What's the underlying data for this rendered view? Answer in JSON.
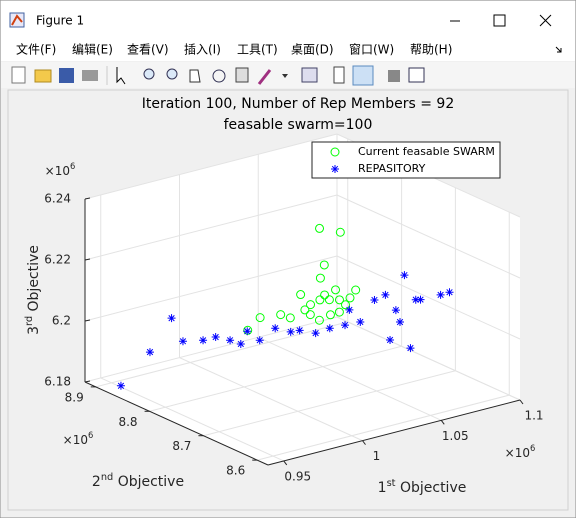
{
  "window": {
    "title": "Figure 1",
    "menu": [
      "文件(F)",
      "编辑(E)",
      "查看(V)",
      "插入(I)",
      "工具(T)",
      "桌面(D)",
      "窗口(W)",
      "帮助(H)"
    ]
  },
  "chart_data": {
    "type": "scatter3",
    "title": [
      "Iteration 100, Number of Rep Members = 92",
      "feasable swarm=100"
    ],
    "xlabel": {
      "base": "1",
      "sup": "st",
      "text": " Objective"
    },
    "ylabel": {
      "base": "2",
      "sup": "nd",
      "text": " Objective"
    },
    "zlabel": {
      "base": "3",
      "sup": "rd",
      "text": " Objective"
    },
    "exponent": {
      "base": "×10",
      "sup": "6"
    },
    "xlim": [
      0.94,
      1.1
    ],
    "ylim": [
      8.58,
      8.92
    ],
    "zlim": [
      6.18,
      6.24
    ],
    "xticks": [
      0.95,
      1,
      1.05,
      1.1
    ],
    "yticks": [
      8.6,
      8.7,
      8.8,
      8.9
    ],
    "zticks": [
      6.18,
      6.2,
      6.22,
      6.24
    ],
    "grid": true,
    "legend": "top-right",
    "series": [
      {
        "name": "Current feasable SWARM",
        "color": "#00ff00",
        "marker": "o",
        "x": [
          1.043,
          1.04,
          1.035,
          1.047,
          1.051,
          1.049,
          1.034,
          1.026,
          1.015,
          1.014,
          1.003,
          1.003,
          1.041,
          1.04,
          1.033,
          1.042,
          1.05,
          1.057,
          1.03,
          1.027,
          1.025,
          1.03,
          1.028
        ],
        "y": [
          8.785,
          8.812,
          8.779,
          8.779,
          8.772,
          8.755,
          8.739,
          8.753,
          8.758,
          8.773,
          8.779,
          8.802,
          8.78,
          8.74,
          8.747,
          8.753,
          8.739,
          8.77,
          8.746,
          8.73,
          8.733,
          8.709,
          8.769
        ],
        "z": [
          6.204,
          6.204,
          6.204,
          6.204,
          6.204,
          6.204,
          6.204,
          6.204,
          6.204,
          6.204,
          6.204,
          6.198,
          6.198,
          6.204,
          6.21,
          6.21,
          6.21,
          6.204,
          6.216,
          6.222,
          6.234,
          6.234,
          6.204
        ]
      },
      {
        "name": "REPASITORY",
        "color": "#0000ff",
        "marker": "*",
        "x": [
          0.943,
          0.944,
          0.983,
          0.967,
          0.976,
          0.984,
          0.987,
          0.988,
          1.002,
          0.999,
          1.016,
          1.019,
          1.024,
          1.028,
          1.038,
          1.047,
          1.056,
          1.052,
          1.072,
          1.053,
          1.081,
          1.082,
          1.084,
          1.074,
          1.065,
          1.046,
          1.083,
          1.086,
          1.08
        ],
        "y": [
          8.862,
          8.811,
          8.885,
          8.817,
          8.806,
          8.806,
          8.788,
          8.771,
          8.8,
          8.768,
          8.789,
          8.769,
          8.767,
          8.749,
          8.752,
          8.75,
          8.748,
          8.681,
          8.721,
          8.646,
          8.755,
          8.721,
          8.718,
          8.754,
          8.748,
          8.739,
          8.745,
          8.67,
          8.669
        ],
        "z": [
          6.183,
          6.198,
          6.198,
          6.198,
          6.198,
          6.198,
          6.198,
          6.198,
          6.198,
          6.198,
          6.198,
          6.198,
          6.198,
          6.198,
          6.198,
          6.198,
          6.198,
          6.198,
          6.198,
          6.198,
          6.198,
          6.204,
          6.204,
          6.204,
          6.204,
          6.204,
          6.21,
          6.21,
          6.21
        ]
      }
    ]
  }
}
